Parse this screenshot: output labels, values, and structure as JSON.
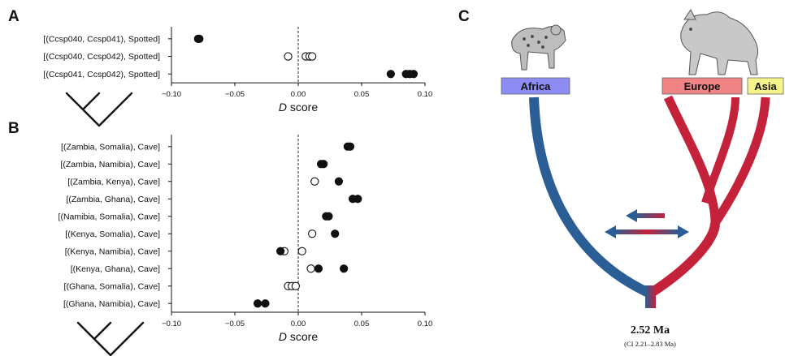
{
  "panels": {
    "a_letter": "A",
    "b_letter": "B",
    "c_letter": "C"
  },
  "chart_data": [
    {
      "type": "scatter",
      "panel": "A",
      "xlabel_prefix": "D",
      "xlabel_suffix": " score",
      "xlim": [
        -0.1,
        0.1
      ],
      "xticks": [
        "−0.10",
        "−0.05",
        "0.00",
        "0.05",
        "0.10"
      ],
      "xtick_values": [
        -0.1,
        -0.05,
        0.0,
        0.05,
        0.1
      ],
      "reference_line": 0.0,
      "rows": [
        {
          "label": "[(Ccsp040, Ccsp041), Spotted]",
          "filled": [
            -0.079,
            -0.078
          ],
          "open": []
        },
        {
          "label": "[(Ccsp040, Ccsp042), Spotted]",
          "filled": [],
          "open": [
            -0.008,
            0.006,
            0.009,
            0.011
          ]
        },
        {
          "label": "[(Ccsp041, Ccsp042), Spotted]",
          "filled": [
            0.073,
            0.085,
            0.088,
            0.091
          ],
          "open": []
        }
      ]
    },
    {
      "type": "scatter",
      "panel": "B",
      "xlabel_prefix": "D",
      "xlabel_suffix": " score",
      "xlim": [
        -0.1,
        0.1
      ],
      "xticks": [
        "−0.10",
        "−0.05",
        "0.00",
        "0.05",
        "0.10"
      ],
      "xtick_values": [
        -0.1,
        -0.05,
        0.0,
        0.05,
        0.1
      ],
      "reference_line": 0.0,
      "rows": [
        {
          "label": "[(Zambia, Somalia), Cave]",
          "filled": [
            0.039,
            0.041
          ],
          "open": []
        },
        {
          "label": "[(Zambia, Namibia), Cave]",
          "filled": [
            0.018,
            0.02
          ],
          "open": []
        },
        {
          "label": "[(Zambia, Kenya), Cave]",
          "filled": [
            0.032
          ],
          "open": [
            0.013
          ]
        },
        {
          "label": "[(Zambia, Ghana), Cave]",
          "filled": [
            0.043,
            0.047
          ],
          "open": []
        },
        {
          "label": "[(Namibia, Somalia), Cave]",
          "filled": [
            0.022,
            0.024
          ],
          "open": []
        },
        {
          "label": "[(Kenya, Somalia), Cave]",
          "filled": [
            0.029
          ],
          "open": [
            0.011
          ]
        },
        {
          "label": "[(Kenya, Namibia), Cave]",
          "filled": [
            -0.014
          ],
          "open": [
            -0.011,
            0.003
          ]
        },
        {
          "label": "[(Kenya, Ghana), Cave]",
          "filled": [
            0.016,
            0.036
          ],
          "open": [
            0.01
          ]
        },
        {
          "label": "[(Ghana, Somalia), Cave]",
          "filled": [],
          "open": [
            -0.008,
            -0.005,
            -0.002
          ]
        },
        {
          "label": "[(Ghana, Namibia), Cave]",
          "filled": [
            -0.032,
            -0.026
          ],
          "open": []
        }
      ]
    }
  ],
  "panel_c": {
    "regions": [
      {
        "label": "Africa",
        "color": "#8c8cf2"
      },
      {
        "label": "Europe",
        "color": "#f08383"
      },
      {
        "label": "Asia",
        "color": "#f4f48a"
      }
    ],
    "africa_lineage_color": "#2a5e94",
    "eurasia_lineage_color": "#c4213a",
    "root_date": "2.52 Ma",
    "root_ci": "(CI 2.21–2.83 Ma)"
  }
}
